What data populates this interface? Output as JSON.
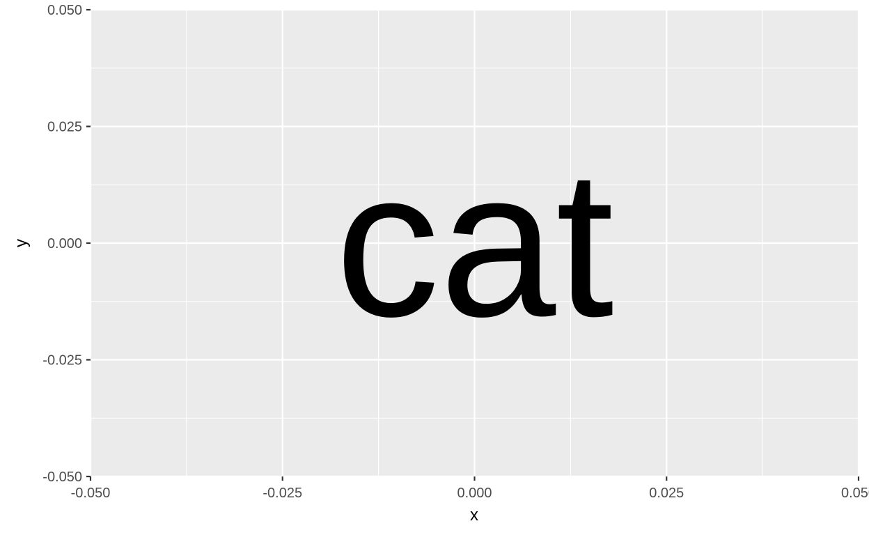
{
  "chart_data": {
    "type": "scatter",
    "title": "",
    "xlabel": "x",
    "ylabel": "y",
    "xlim": [
      -0.05,
      0.05
    ],
    "ylim": [
      -0.05,
      0.05
    ],
    "x_ticks": [
      -0.05,
      -0.025,
      0,
      0.025,
      0.05
    ],
    "x_tick_labels": [
      "-0.050",
      "-0.025",
      "0.000",
      "0.025",
      "0.050"
    ],
    "y_ticks": [
      -0.05,
      -0.025,
      0,
      0.025,
      0.05
    ],
    "y_tick_labels": [
      "-0.050",
      "-0.025",
      "0.000",
      "0.025",
      "0.050"
    ],
    "grid": true,
    "points": [
      {
        "x": 0,
        "y": 0,
        "label": "cat"
      }
    ],
    "colors": {
      "panel_background": "#ebebeb",
      "grid": "#ffffff",
      "text": "#000000",
      "tick_text": "#4d4d4d",
      "tick_mark": "#333333"
    }
  }
}
